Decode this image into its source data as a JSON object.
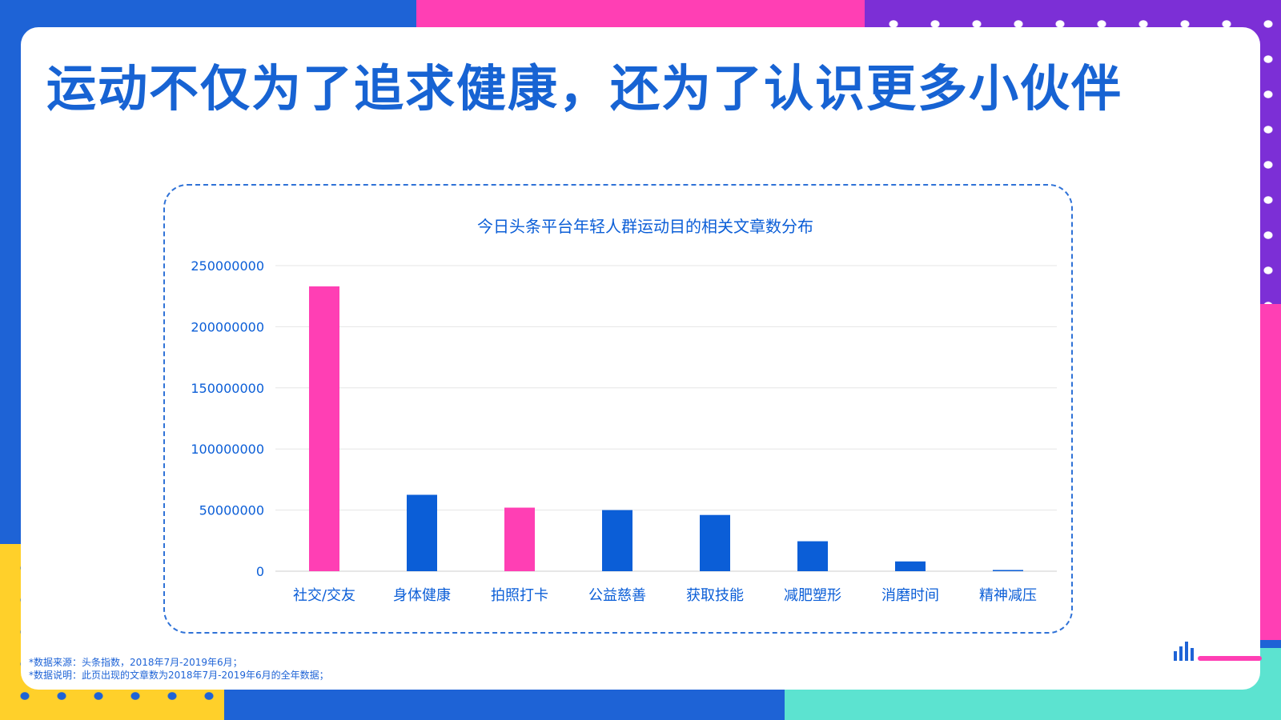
{
  "page": {
    "title": "运动不仅为了追求健康，还为了认识更多小伙伴"
  },
  "colors": {
    "accent_blue": "#0b5ed7",
    "accent_pink": "#ff3fb4",
    "title_blue": "#1763d3",
    "grid": "#e6e6e6"
  },
  "chart_data": {
    "type": "bar",
    "title": "今日头条平台年轻人群运动目的相关文章数分布",
    "xlabel": "",
    "ylabel": "",
    "ylim": [
      0,
      250000000
    ],
    "yticks": [
      "250000000",
      "200000000",
      "150000000",
      "100000000",
      "50000000",
      "0"
    ],
    "categories": [
      "社交/交友",
      "身体健康",
      "拍照打卡",
      "公益慈善",
      "获取技能",
      "减肥塑形",
      "消磨时间",
      "精神减压"
    ],
    "values": [
      233000000,
      62500000,
      52000000,
      50000000,
      46000000,
      24500000,
      8000000,
      1000000
    ],
    "bar_colors": [
      "#ff3fb4",
      "#0b5ed7",
      "#ff3fb4",
      "#0b5ed7",
      "#0b5ed7",
      "#0b5ed7",
      "#0b5ed7",
      "#0b5ed7"
    ],
    "grid": true,
    "legend": "none"
  },
  "footnotes": [
    "*数据来源：头条指数，2018年7月-2019年6月；",
    "*数据说明：此页出现的文章数为2018年7月-2019年6月的全年数据；"
  ],
  "brand": {
    "logo_icon": "bar-logo-icon"
  }
}
